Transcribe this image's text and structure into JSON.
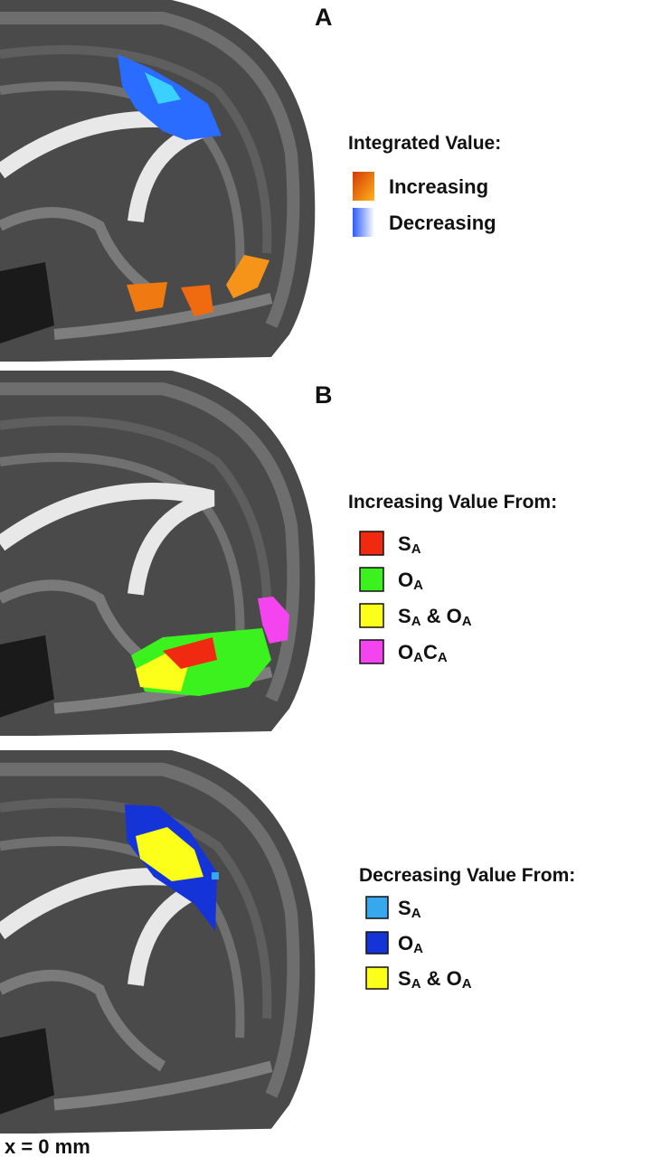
{
  "panels": [
    {
      "label": "A",
      "legend": {
        "title": "Integrated Value:",
        "items": [
          {
            "parts": [
              "Increasing"
            ],
            "gradient": [
              "#d23a06",
              "#ffb21c"
            ]
          },
          {
            "parts": [
              "Decreasing"
            ],
            "gradient": [
              "#2a5cff",
              "#ffffff"
            ]
          }
        ]
      }
    },
    {
      "label": "B",
      "legend": {
        "title": "Increasing Value From:",
        "items": [
          {
            "parts": [
              "S",
              "A"
            ],
            "color": "#f02a10"
          },
          {
            "parts": [
              "O",
              "A"
            ],
            "color": "#3cf21e"
          },
          {
            "parts": [
              "S",
              "A",
              " & O",
              "A"
            ],
            "color": "#fbff1a"
          },
          {
            "parts": [
              "O",
              "A",
              "C",
              "A"
            ],
            "color": "#f444f0"
          }
        ]
      }
    },
    {
      "legend": {
        "title": "Decreasing Value From:",
        "items": [
          {
            "parts": [
              "S",
              "A"
            ],
            "color": "#37a8ee"
          },
          {
            "parts": [
              "O",
              "A"
            ],
            "color": "#1434d8"
          },
          {
            "parts": [
              "S",
              "A",
              " & O",
              "A"
            ],
            "color": "#fbff1a"
          }
        ]
      }
    }
  ],
  "footer": "x = 0 mm"
}
